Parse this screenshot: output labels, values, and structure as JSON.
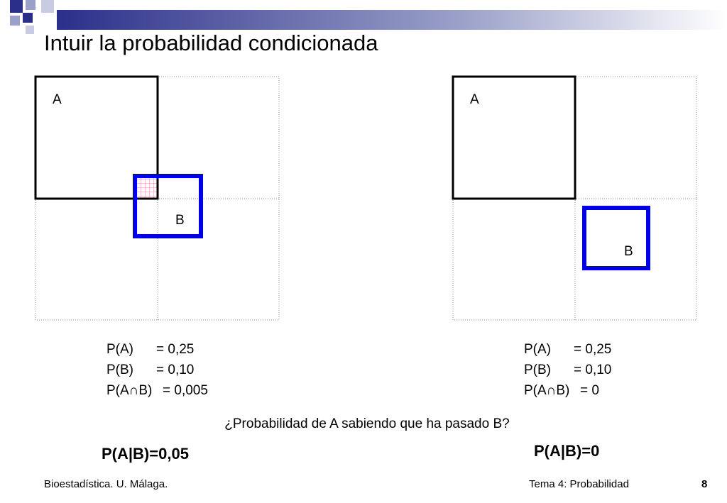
{
  "header": {
    "title": "Intuir  la probabilidad condicionada"
  },
  "left": {
    "label_a": "A",
    "label_b": "B",
    "rows": [
      [
        "P(A)",
        "= 0,25"
      ],
      [
        "P(B)",
        "= 0,10"
      ],
      [
        "P(A∩B)",
        "= 0,005"
      ]
    ],
    "result": "P(A|B)=0,05"
  },
  "right": {
    "label_a": "A",
    "label_b": "B",
    "rows": [
      [
        "P(A)",
        "= 0,25"
      ],
      [
        "P(B)",
        "= 0,10"
      ],
      [
        "P(A∩B)",
        "= 0"
      ]
    ],
    "result": "P(A|B)=0"
  },
  "question": "¿Probabilidad de A sabiendo que ha pasado B?",
  "footer": {
    "left": "Bioestadística. U. Málaga.",
    "center": "Tema 4: Probabilidad",
    "page": "8"
  }
}
